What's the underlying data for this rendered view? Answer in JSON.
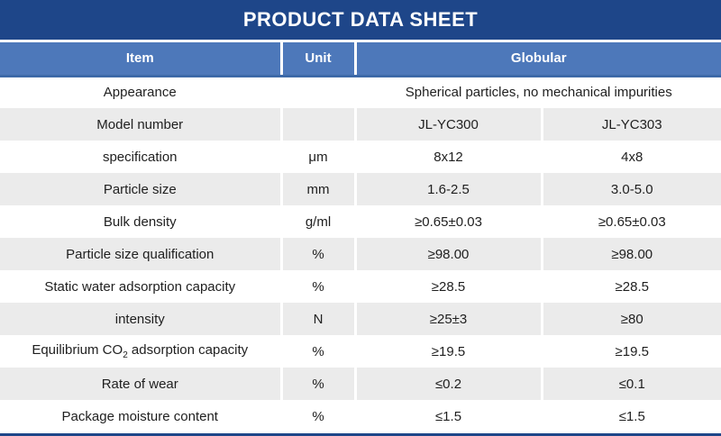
{
  "title": "PRODUCT DATA SHEET",
  "colors": {
    "navy": "#1e4689",
    "header_blue": "#4d78ba",
    "header_border_blue": "#3c69a8",
    "row_gray": "#ebebeb",
    "row_white": "#ffffff",
    "header_text": "#ffffff",
    "body_text": "#1f1f1f"
  },
  "table": {
    "columns": {
      "item": "Item",
      "unit": "Unit",
      "group": "Globular"
    },
    "rows": [
      {
        "item": "Appearance",
        "unit": "",
        "values": [
          "Spherical particles, no mechanical impurities"
        ],
        "span": true
      },
      {
        "item": "Model number",
        "unit": "",
        "values": [
          "JL-YC300",
          "JL-YC303"
        ]
      },
      {
        "item": "specification",
        "unit": "μm",
        "values": [
          "8x12",
          "4x8"
        ]
      },
      {
        "item": "Particle size",
        "unit": "mm",
        "values": [
          "1.6-2.5",
          "3.0-5.0"
        ]
      },
      {
        "item": "Bulk density",
        "unit": "g/ml",
        "values": [
          "≥0.65±0.03",
          "≥0.65±0.03"
        ]
      },
      {
        "item": "Particle size qualification",
        "unit": "%",
        "values": [
          "≥98.00",
          "≥98.00"
        ]
      },
      {
        "item": "Static water adsorption capacity",
        "unit": "%",
        "values": [
          "≥28.5",
          "≥28.5"
        ]
      },
      {
        "item": "intensity",
        "unit": "N",
        "values": [
          "≥25±3",
          "≥80"
        ]
      },
      {
        "item": "Equilibrium CO₂ adsorption capacity",
        "unit": "%",
        "values": [
          "≥19.5",
          "≥19.5"
        ]
      },
      {
        "item": "Rate of wear",
        "unit": "%",
        "values": [
          "≤0.2",
          "≤0.1"
        ]
      },
      {
        "item": "Package moisture content",
        "unit": "%",
        "values": [
          "≤1.5",
          "≤1.5"
        ]
      }
    ]
  }
}
